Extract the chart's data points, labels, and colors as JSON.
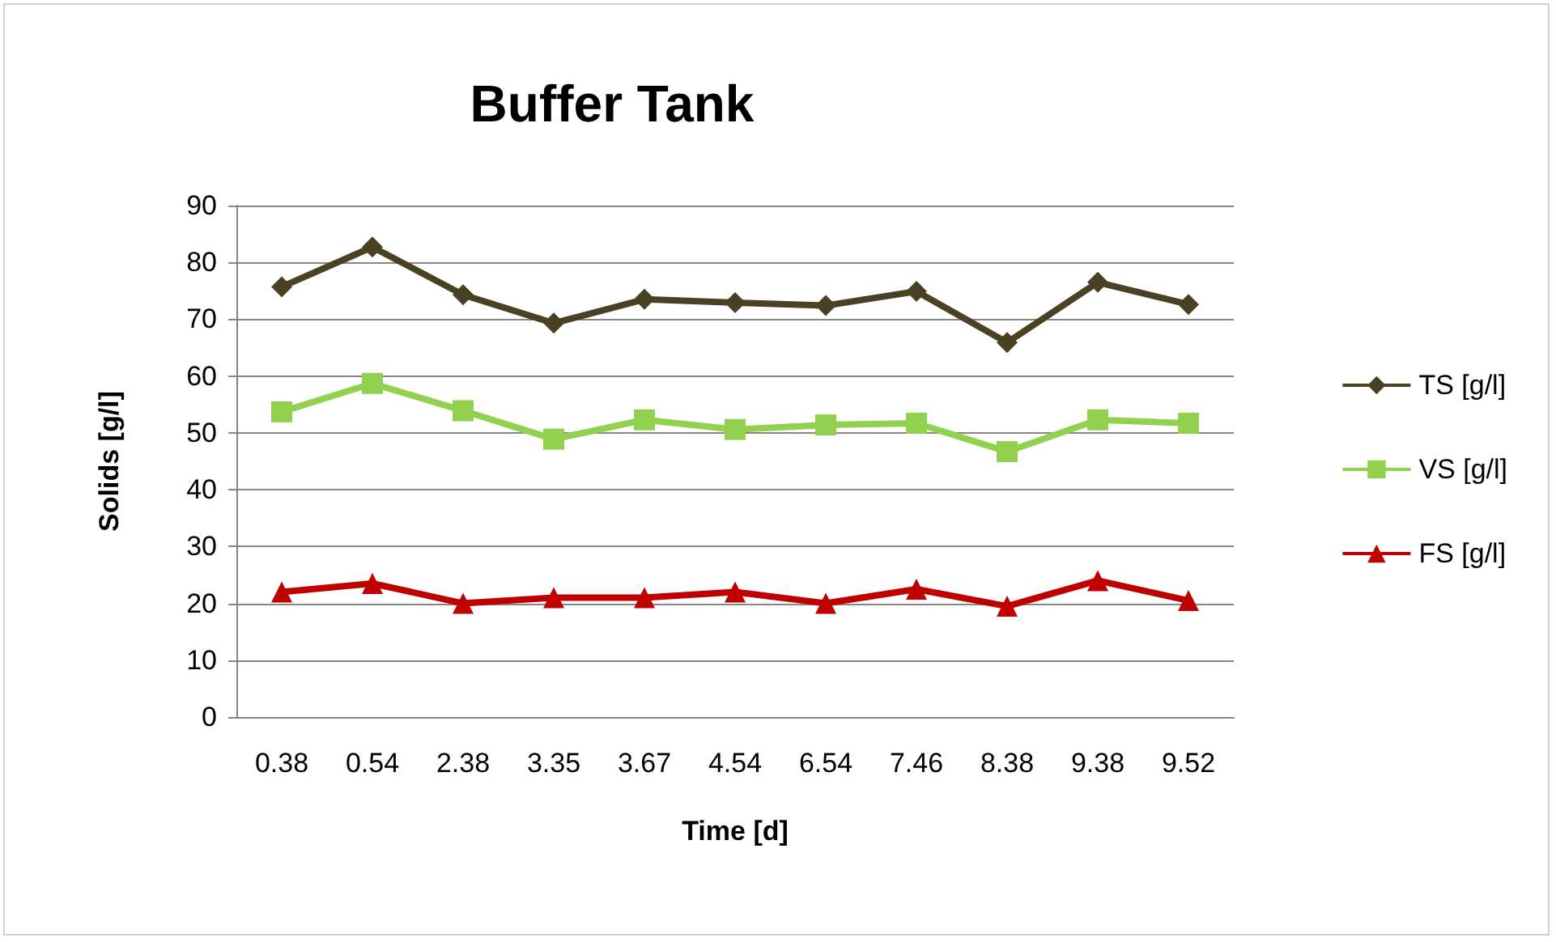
{
  "chart_data": {
    "type": "line",
    "title": "Buffer Tank",
    "xlabel": "Time [d]",
    "ylabel": "Solids [g/l]",
    "categories": [
      "0.38",
      "0.54",
      "2.38",
      "3.35",
      "3.67",
      "4.54",
      "6.54",
      "7.46",
      "8.38",
      "9.38",
      "9.52"
    ],
    "series": [
      {
        "name": "TS [g/l]",
        "color": "#4a4125",
        "marker": "diamond",
        "values": [
          75.7,
          82.7,
          74.3,
          69.3,
          73.5,
          72.9,
          72.4,
          74.9,
          65.9,
          76.5,
          72.6
        ]
      },
      {
        "name": "VS [g/l]",
        "color": "#92d050",
        "marker": "square",
        "values": [
          53.7,
          58.7,
          53.9,
          48.9,
          52.3,
          50.6,
          51.4,
          51.7,
          46.7,
          52.3,
          51.7
        ]
      },
      {
        "name": "FS [g/l]",
        "color": "#c00000",
        "marker": "triangle",
        "values": [
          22,
          23.5,
          20,
          21,
          21,
          22,
          20,
          22.5,
          19.5,
          24,
          20.5
        ]
      }
    ],
    "ylim": [
      0,
      90
    ],
    "yticks": [
      0,
      10,
      20,
      30,
      40,
      50,
      60,
      70,
      80,
      90
    ],
    "grid": "y",
    "legend": "right",
    "line_style": "solid"
  }
}
